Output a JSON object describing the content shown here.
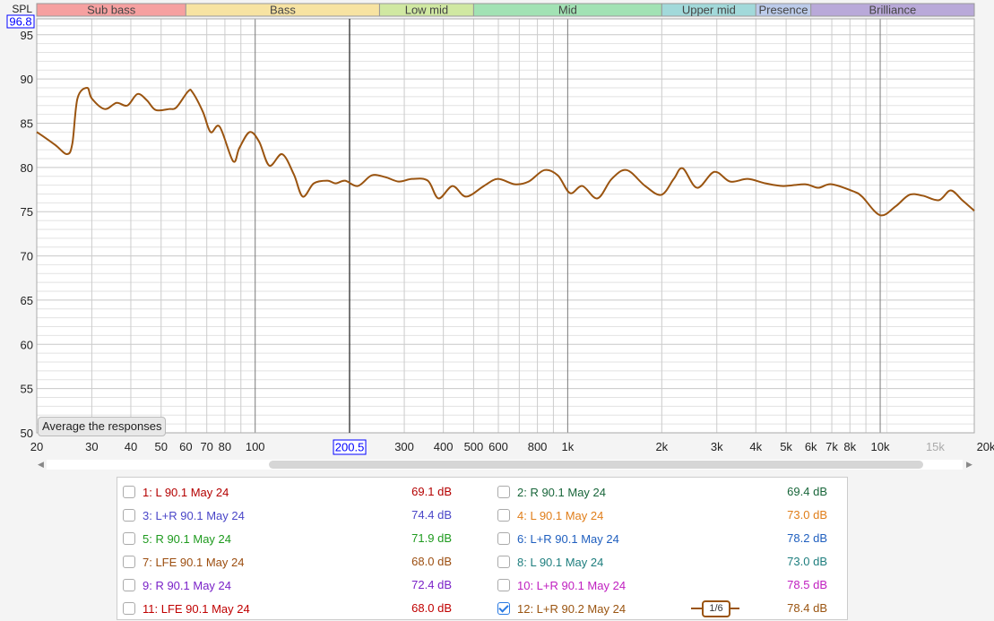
{
  "chart_data": {
    "type": "line",
    "ylabel": "SPL",
    "xunit": "kHz",
    "xscale": "log",
    "xlim": [
      20,
      20000
    ],
    "ylim": [
      50,
      96.8
    ],
    "grid": true,
    "y_ticks": [
      "95",
      "90",
      "85",
      "80",
      "75",
      "70",
      "65",
      "60",
      "55",
      "50"
    ],
    "x_ticks": [
      {
        "f": 20,
        "label": "20"
      },
      {
        "f": 30,
        "label": "30"
      },
      {
        "f": 40,
        "label": "40"
      },
      {
        "f": 50,
        "label": "50"
      },
      {
        "f": 60,
        "label": "60"
      },
      {
        "f": 70,
        "label": "70"
      },
      {
        "f": 80,
        "label": "80"
      },
      {
        "f": 100,
        "label": "100"
      },
      {
        "f": 300,
        "label": "300"
      },
      {
        "f": 400,
        "label": "400"
      },
      {
        "f": 500,
        "label": "500"
      },
      {
        "f": 600,
        "label": "600"
      },
      {
        "f": 800,
        "label": "800"
      },
      {
        "f": 1000,
        "label": "1k"
      },
      {
        "f": 2000,
        "label": "2k"
      },
      {
        "f": 3000,
        "label": "3k"
      },
      {
        "f": 4000,
        "label": "4k"
      },
      {
        "f": 5000,
        "label": "5k"
      },
      {
        "f": 6000,
        "label": "6k"
      },
      {
        "f": 7000,
        "label": "7k"
      },
      {
        "f": 8000,
        "label": "8k"
      },
      {
        "f": 10000,
        "label": "10k"
      },
      {
        "f": 15000,
        "label": "15k"
      },
      {
        "f": 20000,
        "label": "20kHz"
      }
    ],
    "y_cursor_label": "96.8",
    "x_cursor": 200.5,
    "x_cursor_label": "200.5",
    "bands": [
      {
        "name": "Sub bass",
        "from": 20,
        "to": 60,
        "color": "#f6a0a0"
      },
      {
        "name": "Bass",
        "from": 60,
        "to": 250,
        "color": "#f7e3a2"
      },
      {
        "name": "Low mid",
        "from": 250,
        "to": 500,
        "color": "#d0e8a2"
      },
      {
        "name": "Mid",
        "from": 500,
        "to": 2000,
        "color": "#a2e2b4"
      },
      {
        "name": "Upper mid",
        "from": 2000,
        "to": 4000,
        "color": "#a2d9da"
      },
      {
        "name": "Presence",
        "from": 4000,
        "to": 6000,
        "color": "#bccbea"
      },
      {
        "name": "Brilliance",
        "from": 6000,
        "to": 20000,
        "color": "#b9a9d9"
      }
    ],
    "series": [
      {
        "color": "#9a5410",
        "x": [
          20,
          21,
          23,
          25,
          26,
          27,
          29,
          30,
          33,
          36,
          39,
          42,
          45,
          48,
          53,
          56,
          61,
          63,
          68,
          72,
          77,
          85,
          89,
          96,
          103,
          111,
          122,
          133,
          142,
          154,
          170,
          181,
          194,
          213,
          236,
          261,
          288,
          318,
          357,
          386,
          428,
          473,
          539,
          597,
          677,
          750,
          842,
          930,
          1017,
          1114,
          1245,
          1383,
          1545,
          1770,
          1993,
          2185,
          2333,
          2595,
          2946,
          3310,
          3768,
          4295,
          4893,
          5750,
          6334,
          6980,
          8200,
          8750,
          9990,
          11200,
          12400,
          13700,
          15400,
          16800,
          18300,
          20000
        ],
        "y": [
          84.0,
          83.5,
          82.5,
          81.5,
          82.7,
          87.8,
          89.0,
          87.8,
          86.6,
          87.3,
          87.0,
          88.3,
          87.6,
          86.5,
          86.6,
          86.8,
          88.6,
          88.5,
          86.3,
          84.0,
          84.6,
          80.7,
          82.2,
          84.0,
          82.9,
          80.2,
          81.5,
          79.2,
          76.7,
          78.2,
          78.5,
          78.2,
          78.5,
          77.9,
          79.1,
          78.9,
          78.4,
          78.7,
          78.5,
          76.5,
          77.9,
          76.7,
          77.9,
          78.7,
          78.1,
          78.4,
          79.7,
          79.1,
          77.1,
          77.9,
          76.5,
          78.7,
          79.7,
          77.9,
          76.9,
          78.7,
          79.9,
          77.7,
          79.5,
          78.4,
          78.7,
          78.2,
          77.9,
          78.1,
          77.7,
          78.1,
          77.3,
          76.7,
          74.6,
          75.6,
          76.9,
          76.8,
          76.3,
          77.4,
          76.3,
          75.1
        ]
      }
    ]
  },
  "average_button": "Average the responses",
  "legend": [
    {
      "label": "1: L 90.1 May 24",
      "value": "69.1 dB",
      "color": "#b40000",
      "checked": false
    },
    {
      "label": "2: R 90.1 May 24",
      "value": "69.4 dB",
      "color": "#18663a",
      "checked": false
    },
    {
      "label": "3: L+R 90.1 May 24",
      "value": "74.4 dB",
      "color": "#4a46c8",
      "checked": false
    },
    {
      "label": "4: L 90.1 May 24",
      "value": "73.0 dB",
      "color": "#e07e1a",
      "checked": false
    },
    {
      "label": "5: R 90.1 May 24",
      "value": "71.9 dB",
      "color": "#1e9a1e",
      "checked": false
    },
    {
      "label": "6: L+R 90.1 May 24",
      "value": "78.2 dB",
      "color": "#1f5fbf",
      "checked": false
    },
    {
      "label": "7: LFE 90.1 May 24",
      "value": "68.0 dB",
      "color": "#9c4e10",
      "checked": false
    },
    {
      "label": "8: L 90.1 May 24",
      "value": "73.0 dB",
      "color": "#1e7e7e",
      "checked": false
    },
    {
      "label": "9: R 90.1 May 24",
      "value": "72.4 dB",
      "color": "#7a22c8",
      "checked": false
    },
    {
      "label": "10: L+R 90.1 May 24",
      "value": "78.5 dB",
      "color": "#c020c0",
      "checked": false
    },
    {
      "label": "11: LFE 90.1 May 24",
      "value": "68.0 dB",
      "color": "#c00000",
      "checked": false
    },
    {
      "label": "12: L+R 90.2 May 24",
      "value": "78.4 dB",
      "color": "#9a5410",
      "checked": true,
      "smoothing": "1/6"
    }
  ]
}
